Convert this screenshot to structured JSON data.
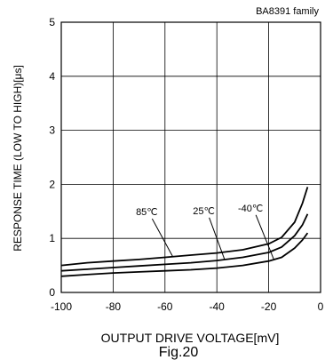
{
  "chart_data": {
    "type": "line",
    "corner_label": "BA8391 family",
    "xlabel": "OUTPUT DRIVE VOLTAGE[mV]",
    "ylabel": "RESPONSE TIME (LOW TO HIGH)[μs]",
    "caption": "Fig.20",
    "xlim": [
      -100,
      0
    ],
    "ylim": [
      0,
      5
    ],
    "x_ticks": [
      -100,
      -80,
      -60,
      -40,
      -20,
      0
    ],
    "y_ticks": [
      0,
      1,
      2,
      3,
      4,
      5
    ],
    "grid": true,
    "series": [
      {
        "name": "85℃",
        "x": [
          -100,
          -90,
          -80,
          -70,
          -60,
          -50,
          -40,
          -30,
          -20,
          -15,
          -10,
          -7,
          -5
        ],
        "y": [
          0.5,
          0.55,
          0.58,
          0.61,
          0.65,
          0.69,
          0.73,
          0.79,
          0.9,
          1.02,
          1.3,
          1.65,
          1.95
        ]
      },
      {
        "name": "25℃",
        "x": [
          -100,
          -90,
          -80,
          -70,
          -60,
          -50,
          -40,
          -30,
          -20,
          -15,
          -10,
          -7,
          -5
        ],
        "y": [
          0.4,
          0.43,
          0.46,
          0.49,
          0.52,
          0.55,
          0.59,
          0.65,
          0.74,
          0.84,
          1.05,
          1.25,
          1.45
        ]
      },
      {
        "name": "-40℃",
        "x": [
          -100,
          -90,
          -80,
          -70,
          -60,
          -50,
          -40,
          -30,
          -20,
          -15,
          -10,
          -7,
          -5
        ],
        "y": [
          0.3,
          0.33,
          0.36,
          0.38,
          0.4,
          0.42,
          0.45,
          0.5,
          0.58,
          0.65,
          0.82,
          0.97,
          1.1
        ]
      }
    ],
    "annotations": [
      {
        "text": "85℃",
        "series_index": 0,
        "x_at": -57,
        "label_x": -67,
        "label_y": 1.43
      },
      {
        "text": "25℃",
        "series_index": 1,
        "x_at": -37,
        "label_x": -45,
        "label_y": 1.45
      },
      {
        "text": "-40℃",
        "series_index": 2,
        "x_at": -18,
        "label_x": -27,
        "label_y": 1.5
      }
    ]
  }
}
